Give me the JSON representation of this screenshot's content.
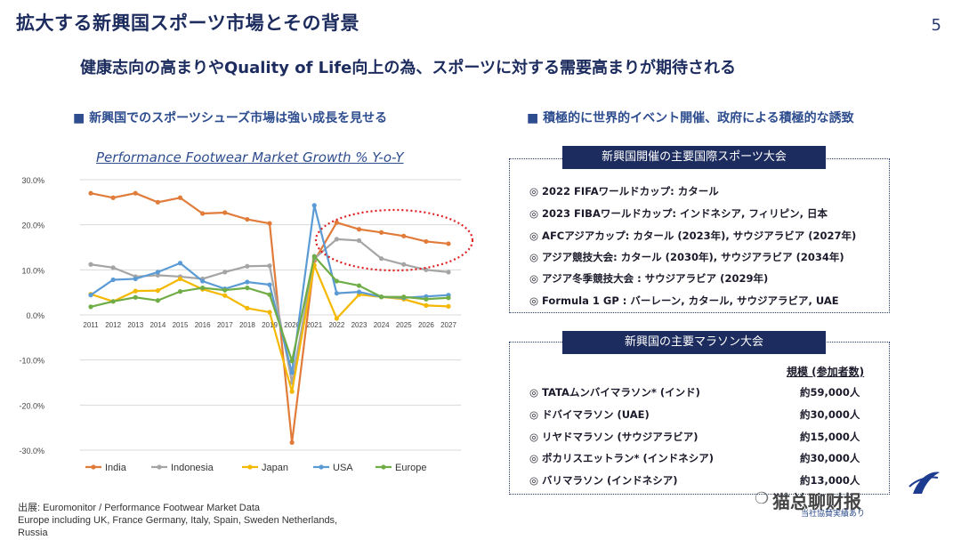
{
  "header": {
    "title": "拡大する新興国スポーツ市場とその背景",
    "page_number": "5",
    "subtitle": "健康志向の高まりやQuality of Life向上の為、スポーツに対する需要高まりが期待される"
  },
  "left": {
    "heading": "■ 新興国でのスポーツシューズ市場は強い成長を見せる",
    "source_lines": [
      "出展: Euromonitor / Performance Footwear Market Data",
      "Europe including UK, France Germany, Italy, Spain, Sweden Netherlands,",
      "Russia"
    ]
  },
  "right": {
    "heading": "■ 積極的に世界的イベント開催、政府による積極的な誘致",
    "events_box": {
      "title": "新興国開催の主要国際スポーツ大会",
      "items": [
        "◎ 2022 FIFAワールドカップ: カタール",
        "◎ 2023 FIBAワールドカップ: インドネシア, フィリピン, 日本",
        "◎ AFCアジアカップ:  カタール (2023年), サウジアラビア (2027年)",
        "◎ アジア競技大会:  カタール (2030年), サウジアラビア (2034年)",
        "◎ アジア冬季競技大会 : サウジアラビア (2029年)",
        "◎ Formula 1 GP : バーレーン, カタール, サウジアラビア, UAE"
      ]
    },
    "marathon_box": {
      "title": "新興国の主要マラソン大会",
      "scale_header": "規模 (参加者数)",
      "rows": [
        {
          "name": "◎ TATAムンバイマラソン* (インド)",
          "value": "約59,000人"
        },
        {
          "name": "◎ ドバイマラソン (UAE)",
          "value": "約30,000人"
        },
        {
          "name": "◎ リヤドマラソン (サウジアラビア)",
          "value": "約15,000人"
        },
        {
          "name": "◎ ポカリスエットラン* (インドネシア)",
          "value": "約30,000人"
        },
        {
          "name": "◎ バリマラソン (インドネシア)",
          "value": "約13,000人"
        }
      ]
    }
  },
  "watermark": {
    "text": "猫总聊财报",
    "logo_caption": "当社協賛実績あり"
  },
  "chart_data": {
    "type": "line",
    "title": "Performance Footwear Market Growth % Y-o-Y",
    "x": [
      "2011",
      "2012",
      "2013",
      "2014",
      "2015",
      "2016",
      "2017",
      "2018",
      "2019",
      "2020",
      "2021",
      "2022",
      "2023",
      "2024",
      "2025",
      "2026",
      "2027"
    ],
    "y_ticks": [
      "30.0%",
      "20.0%",
      "10.0%",
      "0.0%",
      "-10.0%",
      "-20.0%",
      "-30.0%"
    ],
    "ylim": [
      -30,
      30
    ],
    "grid": true,
    "legend_position": "bottom",
    "series": [
      {
        "name": "India",
        "color": "#e07b39",
        "values": [
          27.0,
          26.0,
          27.0,
          25.0,
          26.0,
          22.5,
          22.7,
          21.2,
          20.3,
          -28.3,
          12.0,
          20.5,
          19.0,
          18.3,
          17.5,
          16.3,
          15.8
        ]
      },
      {
        "name": "Indonesia",
        "color": "#a5a5a5",
        "values": [
          11.2,
          10.5,
          8.5,
          8.8,
          8.5,
          8.0,
          9.5,
          10.8,
          10.9,
          -15.0,
          12.5,
          16.8,
          16.5,
          12.5,
          11.2,
          10.0,
          9.5
        ]
      },
      {
        "name": "Japan",
        "color": "#f5b800",
        "values": [
          4.6,
          3.0,
          5.3,
          5.4,
          8.0,
          5.7,
          4.3,
          1.5,
          0.6,
          -17.0,
          11.0,
          -0.8,
          4.5,
          4.0,
          3.5,
          2.1,
          1.9
        ]
      },
      {
        "name": "USA",
        "color": "#5b9bd5",
        "values": [
          4.4,
          7.8,
          8.0,
          9.5,
          11.5,
          7.5,
          5.8,
          7.3,
          6.7,
          -12.8,
          24.3,
          4.8,
          5.1,
          4.0,
          3.8,
          4.1,
          4.4
        ]
      },
      {
        "name": "Europe",
        "color": "#70ad47",
        "values": [
          1.8,
          3.0,
          3.9,
          3.2,
          5.2,
          6.0,
          5.5,
          6.0,
          4.5,
          -10.2,
          13.0,
          7.5,
          6.5,
          4.0,
          4.0,
          3.5,
          3.8
        ]
      }
    ],
    "annotation": "red dotted ellipse highlighting 2022-2027 projections for India and Indonesia"
  }
}
